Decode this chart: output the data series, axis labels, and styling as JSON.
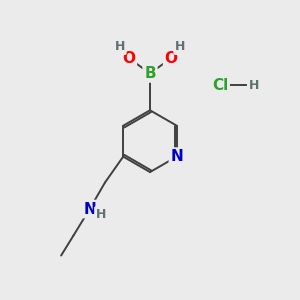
{
  "background_color": "#ebebeb",
  "atom_colors": {
    "B": "#2da02d",
    "O": "#ff0000",
    "N": "#0000cc",
    "C": "#404040",
    "H": "#607070",
    "Cl": "#2da02d"
  },
  "font_size_atoms": 11,
  "font_size_small": 9,
  "figsize": [
    3.0,
    3.0
  ],
  "dpi": 100,
  "lw": 1.4
}
